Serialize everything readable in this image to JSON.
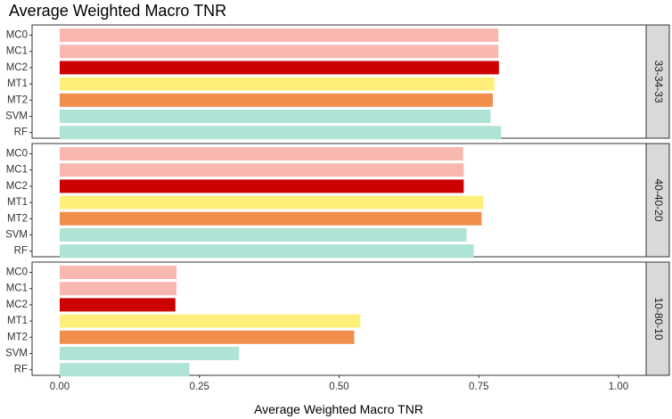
{
  "chart_data": {
    "type": "bar",
    "orientation": "horizontal",
    "title": "Average Weighted Macro TNR",
    "xlabel": "Average Weighted Macro TNR",
    "ylabel": "",
    "xlim": [
      0,
      1.05
    ],
    "x_ticks": [
      "0.00",
      "0.25",
      "0.50",
      "0.75",
      "1.00"
    ],
    "x_tick_values": [
      0,
      0.25,
      0.5,
      0.75,
      1.0
    ],
    "grid": false,
    "legend": "none",
    "categories": [
      "MC0",
      "MC1",
      "MC2",
      "MT1",
      "MT2",
      "SVM",
      "RF"
    ],
    "colors": {
      "MC0": "#f8b8b0",
      "MC1": "#f8b8b0",
      "MC2": "#cc0000",
      "MT1": "#ffef7a",
      "MT2": "#f28e4c",
      "SVM": "#aee3d6",
      "RF": "#aee3d6"
    },
    "facets": [
      {
        "label": "33-34-33",
        "values": [
          0.785,
          0.785,
          0.786,
          0.778,
          0.775,
          0.771,
          0.79
        ]
      },
      {
        "label": "40-40-20",
        "values": [
          0.722,
          0.723,
          0.723,
          0.758,
          0.755,
          0.728,
          0.741
        ]
      },
      {
        "label": "10-80-10",
        "values": [
          0.209,
          0.209,
          0.207,
          0.538,
          0.527,
          0.321,
          0.232
        ]
      }
    ]
  }
}
